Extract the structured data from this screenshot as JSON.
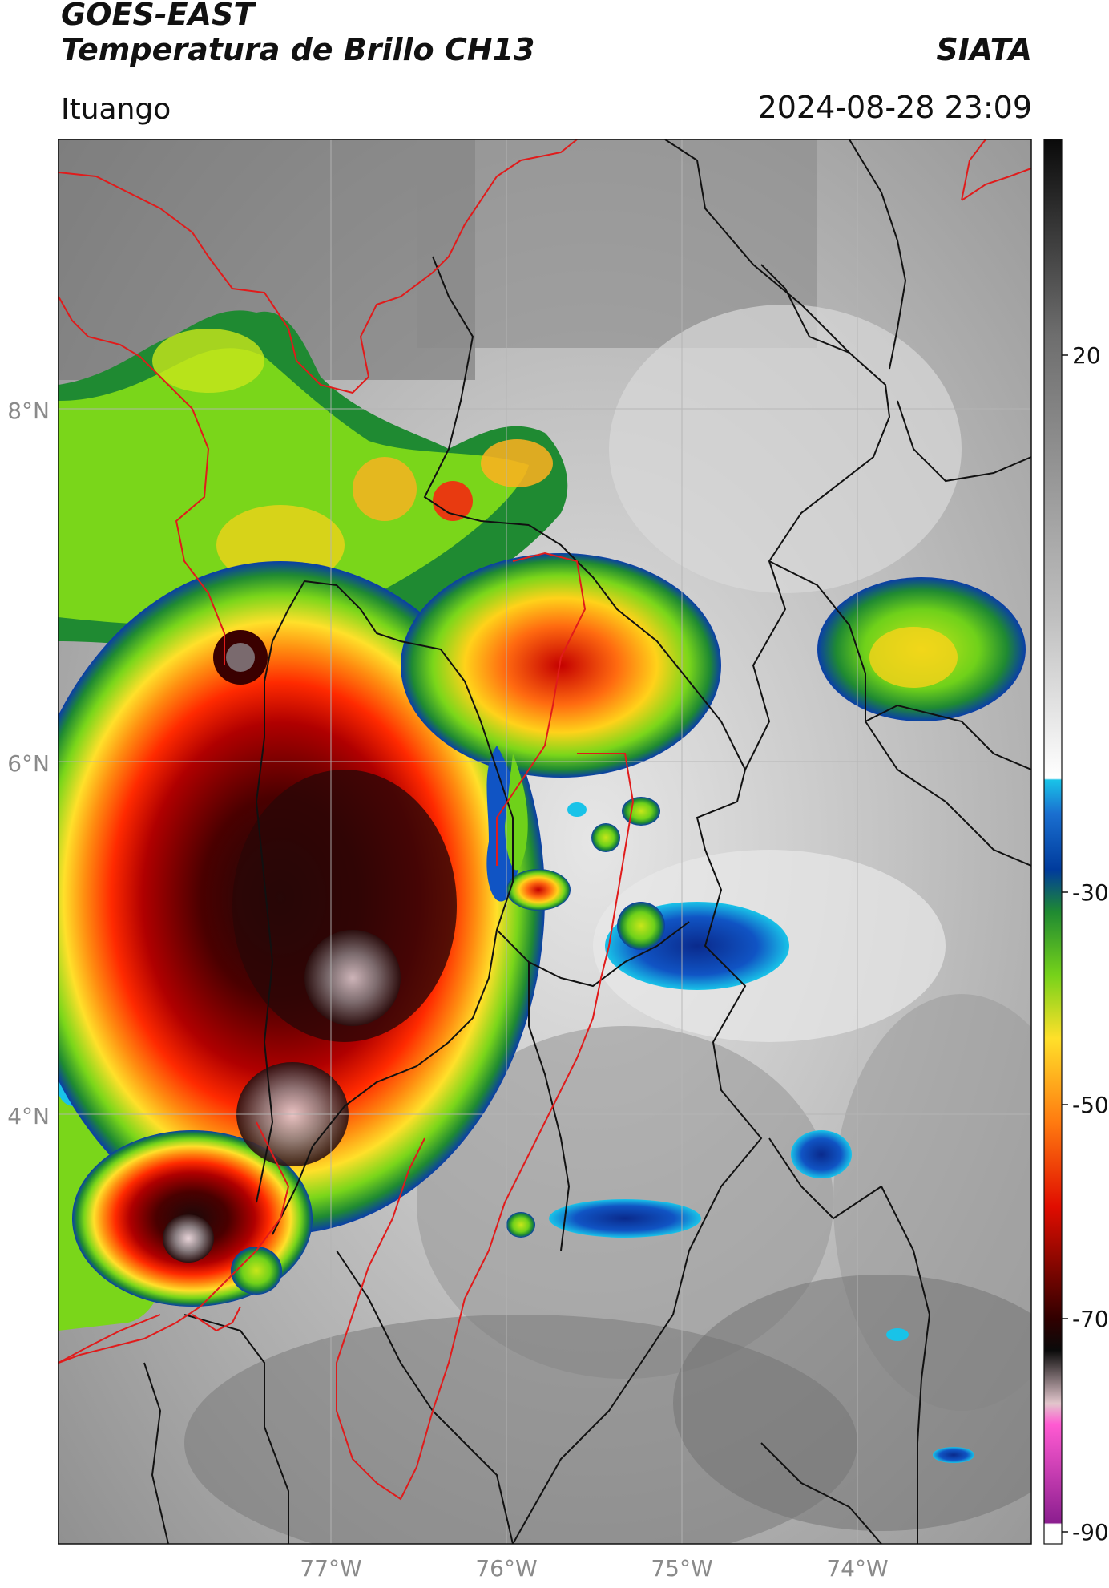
{
  "header": {
    "satellite": "GOES-EAST",
    "product": "Temperatura de Brillo CH13",
    "brand": "SIATA",
    "region": "Ituango",
    "timestamp": "2024-08-28 23:09"
  },
  "map": {
    "lat_labels": [
      "8°N",
      "6°N",
      "4°N"
    ],
    "lon_labels": [
      "77°W",
      "76°W",
      "75°W",
      "74°W"
    ],
    "colors": {
      "red_boundary": "#e01b1b",
      "black_boundary": "#111111",
      "grid": "#b5b5b5"
    }
  },
  "colorbar": {
    "tick_labels": [
      "20",
      "-30",
      "-50",
      "-70",
      "-90"
    ],
    "stops": [
      {
        "value": 40,
        "color": "#0a0a0a"
      },
      {
        "value": 20,
        "color": "#8c8c8c"
      },
      {
        "value": -20,
        "color": "#ffffff"
      },
      {
        "value": -20.5,
        "color": "#19c3e8"
      },
      {
        "value": -30,
        "color": "#003b9c"
      },
      {
        "value": -35,
        "color": "#1f8a32"
      },
      {
        "value": -42,
        "color": "#76d21a"
      },
      {
        "value": -50,
        "color": "#ffe02a"
      },
      {
        "value": -56,
        "color": "#ff7a10"
      },
      {
        "value": -62,
        "color": "#e00d00"
      },
      {
        "value": -68,
        "color": "#300000"
      },
      {
        "value": -72,
        "color": "#1a1a1a"
      },
      {
        "value": -78,
        "color": "#e2c6cc"
      },
      {
        "value": -80,
        "color": "#ff5ad2"
      },
      {
        "value": -89,
        "color": "#8b1e8f"
      },
      {
        "value": -90,
        "color": "#ffffff"
      }
    ]
  }
}
